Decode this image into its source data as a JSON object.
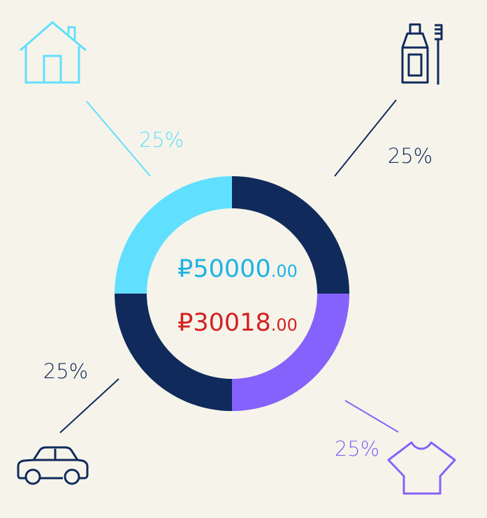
{
  "chart_data": {
    "type": "pie",
    "style": "donut",
    "categories": [
      "Household",
      "Hygiene",
      "Clothing",
      "Transport"
    ],
    "values": [
      25,
      25,
      25,
      25
    ],
    "labels": [
      "25%",
      "25%",
      "25%",
      "25%"
    ],
    "colors": [
      "#102a5c",
      "#8562fb",
      "#102a5c",
      "#61dffe"
    ],
    "label_colors": [
      "#61dffe",
      "#102a5c",
      "#8562fb",
      "#102a5c"
    ],
    "icons": [
      "house-icon",
      "toothpaste-toothbrush-icon",
      "tshirt-icon",
      "car-icon"
    ]
  },
  "center": {
    "budget": {
      "currency": "₽",
      "integer": "50000",
      "cents": ".00",
      "color": "#1eb2e4"
    },
    "spent": {
      "currency": "₽",
      "integer": "30018",
      "cents": ".00",
      "color": "#d42020"
    }
  }
}
